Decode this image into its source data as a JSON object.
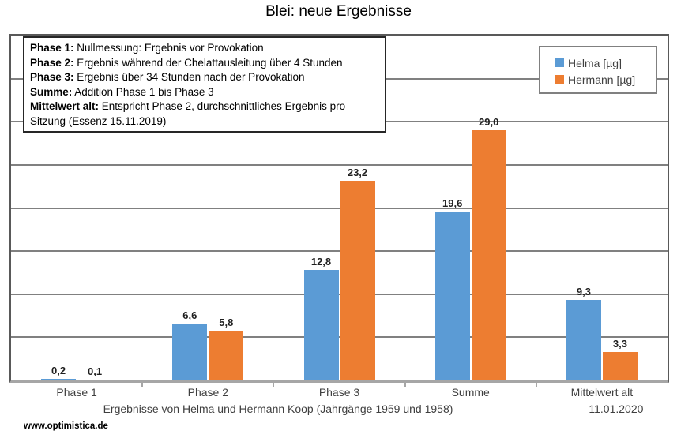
{
  "title": "Blei: neue Ergebnisse",
  "annotation_box": {
    "lines": [
      {
        "label": "Phase 1:",
        "text": " Nullmessung: Ergebnis vor Provokation"
      },
      {
        "label": "Phase 2:",
        "text": " Ergebnis während der Chelattausleitung über 4 Stunden"
      },
      {
        "label": "Phase 3:",
        "text": " Ergebnis über 34 Stunden nach der Provokation"
      },
      {
        "label": "Summe:",
        "text": " Addition Phase 1 bis Phase 3"
      },
      {
        "label": "Mittelwert alt:",
        "text": " Entspricht Phase 2, durchschnittliches Ergebnis pro Sitzung (Essenz 15.11.2019)"
      }
    ]
  },
  "legend": {
    "items": [
      {
        "name": "Helma [µg]",
        "color": "#5B9BD5"
      },
      {
        "name": "Hermann [µg]",
        "color": "#ED7D31"
      }
    ]
  },
  "footer": {
    "axis_title": "Ergebnisse von Helma und Hermann Koop (Jahrgänge 1959 und 1958)",
    "website": "www.optimistica.de"
  },
  "chart_data": {
    "type": "bar",
    "title": "Blei: neue Ergebnisse",
    "categories": [
      "Phase 1",
      "Phase 2",
      "Phase 3",
      "Summe",
      "Mittelwert alt"
    ],
    "category_sublabels": [
      "",
      "",
      "",
      "",
      "11.01.2020"
    ],
    "series": [
      {
        "name": "Helma [µg]",
        "color": "#5B9BD5",
        "values": [
          0.2,
          6.6,
          12.8,
          19.6,
          9.3
        ]
      },
      {
        "name": "Hermann [µg]",
        "color": "#ED7D31",
        "values": [
          0.1,
          5.8,
          23.2,
          29.0,
          3.3
        ]
      }
    ],
    "value_labels": [
      [
        "0,2",
        "6,6",
        "12,8",
        "19,6",
        "9,3"
      ],
      [
        "0,1",
        "5,8",
        "23,2",
        "29,0",
        "3,3"
      ]
    ],
    "xlabel": "Ergebnisse von Helma und Hermann Koop (Jahrgänge 1959 und 1958)",
    "ylabel": "",
    "ylim": [
      0,
      40
    ],
    "grid_step": 5,
    "grid": true,
    "legend_position": "top-right",
    "decimal_separator": ",",
    "gridline_color": "#808080",
    "axis_line_color": "#a6a6a6"
  }
}
